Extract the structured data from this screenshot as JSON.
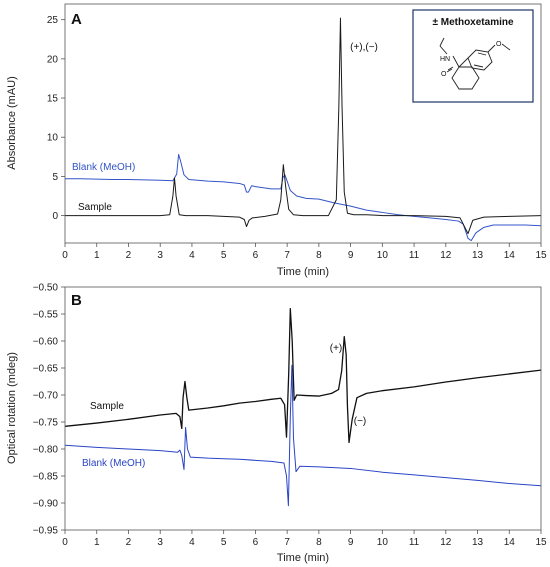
{
  "chart_data": [
    {
      "type": "line",
      "panel_label": "A",
      "xlabel": "Time (min)",
      "ylabel": "Absorbance (mAU)",
      "xlim": [
        0,
        15
      ],
      "ylim": [
        -3.5,
        27
      ],
      "x_ticks": [
        0,
        1,
        2,
        3,
        4,
        5,
        6,
        7,
        8,
        9,
        10,
        11,
        12,
        13,
        14,
        15
      ],
      "y_ticks": [
        0,
        5,
        10,
        15,
        20,
        25
      ],
      "grid": false,
      "annotations": [
        "(+),(−)"
      ],
      "inset": {
        "title": "± Methoxetamine",
        "atom_labels": [
          "HN",
          "O",
          "O"
        ]
      },
      "series": [
        {
          "name": "Blank (MeOH)",
          "color": "#3355c8",
          "points": [
            [
              0,
              4.7
            ],
            [
              0.5,
              4.7
            ],
            [
              1,
              4.65
            ],
            [
              1.5,
              4.6
            ],
            [
              2,
              4.6
            ],
            [
              2.5,
              4.55
            ],
            [
              3,
              4.5
            ],
            [
              3.4,
              4.45
            ],
            [
              3.52,
              5.3
            ],
            [
              3.58,
              7.8
            ],
            [
              3.64,
              7.0
            ],
            [
              3.75,
              5.2
            ],
            [
              3.9,
              4.6
            ],
            [
              4.5,
              4.4
            ],
            [
              5,
              4.3
            ],
            [
              5.5,
              4.1
            ],
            [
              5.65,
              3.9
            ],
            [
              5.72,
              3.0
            ],
            [
              5.78,
              3.0
            ],
            [
              5.88,
              3.8
            ],
            [
              6,
              3.7
            ],
            [
              6.5,
              3.4
            ],
            [
              6.8,
              3.4
            ],
            [
              6.87,
              4.9
            ],
            [
              6.93,
              5.2
            ],
            [
              7.0,
              4.4
            ],
            [
              7.1,
              3.2
            ],
            [
              7.3,
              2.5
            ],
            [
              7.6,
              2.2
            ],
            [
              8,
              2.1
            ],
            [
              8.5,
              1.6
            ],
            [
              9,
              1.2
            ],
            [
              9.5,
              0.7
            ],
            [
              10,
              0.4
            ],
            [
              10.5,
              0.1
            ],
            [
              11,
              -0.1
            ],
            [
              11.5,
              -0.3
            ],
            [
              12,
              -0.5
            ],
            [
              12.4,
              -0.7
            ],
            [
              12.55,
              -1.1
            ],
            [
              12.7,
              -2.9
            ],
            [
              12.8,
              -3.2
            ],
            [
              12.95,
              -2.2
            ],
            [
              13.2,
              -1.5
            ],
            [
              13.5,
              -1.2
            ],
            [
              14,
              -1.2
            ],
            [
              14.5,
              -1.2
            ],
            [
              15,
              -1.3
            ]
          ]
        },
        {
          "name": "Sample",
          "color": "#1a1a1a",
          "points": [
            [
              0,
              0
            ],
            [
              1,
              0
            ],
            [
              2,
              0
            ],
            [
              3,
              0
            ],
            [
              3.3,
              0.1
            ],
            [
              3.4,
              2.5
            ],
            [
              3.45,
              4.8
            ],
            [
              3.5,
              2.5
            ],
            [
              3.6,
              0.1
            ],
            [
              3.8,
              0
            ],
            [
              4.5,
              0
            ],
            [
              5,
              -0.1
            ],
            [
              5.5,
              -0.2
            ],
            [
              5.65,
              -0.5
            ],
            [
              5.72,
              -1.4
            ],
            [
              5.8,
              -0.6
            ],
            [
              5.9,
              -0.3
            ],
            [
              6.3,
              -0.1
            ],
            [
              6.7,
              0.2
            ],
            [
              6.8,
              2.0
            ],
            [
              6.88,
              6.5
            ],
            [
              6.96,
              3.5
            ],
            [
              7.05,
              0.8
            ],
            [
              7.2,
              0.1
            ],
            [
              7.5,
              0
            ],
            [
              8.3,
              0
            ],
            [
              8.55,
              2
            ],
            [
              8.63,
              14
            ],
            [
              8.68,
              25.2
            ],
            [
              8.73,
              14
            ],
            [
              8.8,
              3
            ],
            [
              8.9,
              0.3
            ],
            [
              9.1,
              0.1
            ],
            [
              9.5,
              0.1
            ],
            [
              10,
              0
            ],
            [
              11,
              0
            ],
            [
              12,
              -0.1
            ],
            [
              12.45,
              -0.3
            ],
            [
              12.6,
              -1.5
            ],
            [
              12.7,
              -2.3
            ],
            [
              12.85,
              -0.6
            ],
            [
              13.2,
              -0.2
            ],
            [
              14,
              -0.1
            ],
            [
              15,
              0
            ]
          ]
        }
      ]
    },
    {
      "type": "line",
      "panel_label": "B",
      "xlabel": "Time (min)",
      "ylabel": "Optical rotation (mdeg)",
      "xlim": [
        0,
        15
      ],
      "ylim": [
        -0.95,
        -0.5
      ],
      "x_ticks": [
        0,
        1,
        2,
        3,
        4,
        5,
        6,
        7,
        8,
        9,
        10,
        11,
        12,
        13,
        14,
        15
      ],
      "y_ticks": [
        -0.95,
        -0.9,
        -0.85,
        -0.8,
        -0.75,
        -0.7,
        -0.65,
        -0.6,
        -0.55,
        -0.5
      ],
      "grid": false,
      "annotations": [
        "(+)",
        "(−)"
      ],
      "series": [
        {
          "name": "Sample",
          "color": "#111111",
          "points": [
            [
              0,
              -0.758
            ],
            [
              1,
              -0.752
            ],
            [
              2,
              -0.745
            ],
            [
              3,
              -0.737
            ],
            [
              3.5,
              -0.734
            ],
            [
              3.62,
              -0.74
            ],
            [
              3.68,
              -0.762
            ],
            [
              3.72,
              -0.705
            ],
            [
              3.78,
              -0.675
            ],
            [
              3.84,
              -0.705
            ],
            [
              3.9,
              -0.728
            ],
            [
              4.5,
              -0.724
            ],
            [
              5,
              -0.72
            ],
            [
              5.5,
              -0.715
            ],
            [
              6,
              -0.712
            ],
            [
              6.5,
              -0.708
            ],
            [
              6.8,
              -0.706
            ],
            [
              6.92,
              -0.718
            ],
            [
              6.98,
              -0.778
            ],
            [
              7.05,
              -0.66
            ],
            [
              7.1,
              -0.54
            ],
            [
              7.16,
              -0.6
            ],
            [
              7.22,
              -0.71
            ],
            [
              7.3,
              -0.7
            ],
            [
              7.6,
              -0.701
            ],
            [
              8,
              -0.702
            ],
            [
              8.4,
              -0.697
            ],
            [
              8.62,
              -0.69
            ],
            [
              8.72,
              -0.655
            ],
            [
              8.8,
              -0.592
            ],
            [
              8.86,
              -0.625
            ],
            [
              8.9,
              -0.72
            ],
            [
              8.95,
              -0.788
            ],
            [
              9.05,
              -0.745
            ],
            [
              9.2,
              -0.705
            ],
            [
              9.5,
              -0.697
            ],
            [
              10,
              -0.692
            ],
            [
              11,
              -0.685
            ],
            [
              12,
              -0.676
            ],
            [
              13,
              -0.668
            ],
            [
              14,
              -0.661
            ],
            [
              15,
              -0.654
            ]
          ]
        },
        {
          "name": "Blank (MeOH)",
          "color": "#2a44c4",
          "points": [
            [
              0,
              -0.793
            ],
            [
              1,
              -0.797
            ],
            [
              2,
              -0.8
            ],
            [
              3,
              -0.803
            ],
            [
              3.55,
              -0.806
            ],
            [
              3.62,
              -0.802
            ],
            [
              3.68,
              -0.812
            ],
            [
              3.75,
              -0.838
            ],
            [
              3.8,
              -0.76
            ],
            [
              3.86,
              -0.8
            ],
            [
              3.95,
              -0.815
            ],
            [
              4.5,
              -0.817
            ],
            [
              5,
              -0.818
            ],
            [
              5.5,
              -0.819
            ],
            [
              6,
              -0.821
            ],
            [
              6.5,
              -0.823
            ],
            [
              6.9,
              -0.826
            ],
            [
              6.98,
              -0.85
            ],
            [
              7.04,
              -0.905
            ],
            [
              7.1,
              -0.74
            ],
            [
              7.15,
              -0.645
            ],
            [
              7.2,
              -0.78
            ],
            [
              7.28,
              -0.842
            ],
            [
              7.4,
              -0.832
            ],
            [
              8,
              -0.833
            ],
            [
              9,
              -0.836
            ],
            [
              10,
              -0.843
            ],
            [
              11,
              -0.848
            ],
            [
              12,
              -0.853
            ],
            [
              13,
              -0.858
            ],
            [
              14,
              -0.864
            ],
            [
              15,
              -0.868
            ]
          ]
        }
      ]
    }
  ]
}
